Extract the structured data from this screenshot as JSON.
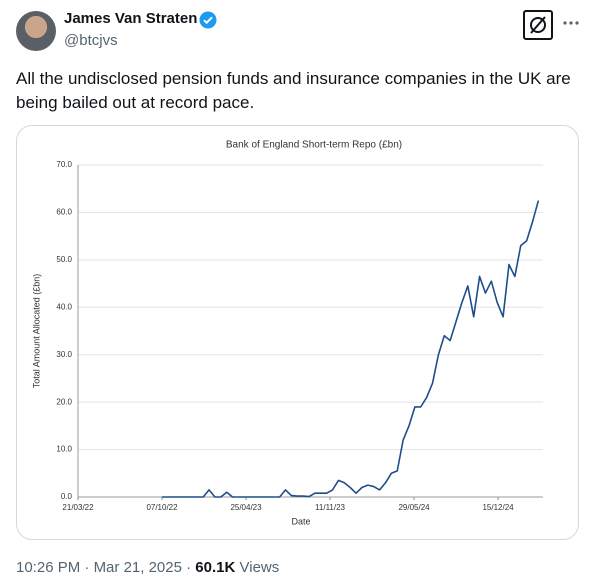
{
  "post": {
    "name": "James Van Straten",
    "handle": "@btcjvs",
    "text": "All the undisclosed pension funds and insurance companies in the UK are being bailed out at record pace.",
    "time": "10:26 PM",
    "date": "Mar 21, 2025",
    "views_count": "60.1K",
    "views_label": "Views"
  },
  "chart_data": {
    "type": "line",
    "title": "Bank of England Short-term Repo (£bn)",
    "xlabel": "Date",
    "ylabel": "Total Amount Allocated (£bn)",
    "x": [
      "07/10/22",
      "21/10/22",
      "04/11/22",
      "18/11/22",
      "02/12/22",
      "16/12/22",
      "30/12/22",
      "13/01/23",
      "27/01/23",
      "10/02/23",
      "24/02/23",
      "10/03/23",
      "24/03/23",
      "07/04/23",
      "21/04/23",
      "05/05/23",
      "19/05/23",
      "02/06/23",
      "16/06/23",
      "30/06/23",
      "14/07/23",
      "28/07/23",
      "11/08/23",
      "25/08/23",
      "08/09/23",
      "22/09/23",
      "06/10/23",
      "20/10/23",
      "03/11/23",
      "17/11/23",
      "01/12/23",
      "15/12/23",
      "29/12/23",
      "12/01/24",
      "26/01/24",
      "09/02/24",
      "23/02/24",
      "08/03/24",
      "22/03/24",
      "05/04/24",
      "19/04/24",
      "03/05/24",
      "17/05/24",
      "31/05/24",
      "14/06/24",
      "28/06/24",
      "12/07/24",
      "26/07/24",
      "09/08/24",
      "23/08/24",
      "06/09/24",
      "20/09/24",
      "04/10/24",
      "18/10/24",
      "01/11/24",
      "15/11/24",
      "29/11/24",
      "13/12/24",
      "27/12/24",
      "10/01/25",
      "24/01/25",
      "07/02/25",
      "21/02/25",
      "07/03/25",
      "21/03/25"
    ],
    "series": [
      {
        "name": "Short-term Repo",
        "color": "#1f4e8c",
        "values": [
          0,
          0,
          0,
          0,
          0,
          0,
          0,
          0,
          1.5,
          0,
          0,
          1,
          0,
          0,
          0,
          0,
          0,
          0,
          0,
          0,
          0,
          1.5,
          0.3,
          0.2,
          0.2,
          0.1,
          0.8,
          0.8,
          0.8,
          1.5,
          3.5,
          3,
          2,
          0.8,
          2,
          2.5,
          2.2,
          1.5,
          3,
          5,
          5.5,
          12,
          15,
          19,
          19,
          21,
          24,
          30,
          34,
          33,
          37,
          41,
          44.5,
          38,
          46.5,
          43,
          45.5,
          41,
          38,
          49,
          46.5,
          53,
          54,
          58,
          62.5
        ]
      }
    ],
    "xlim": [
      "21/03/22",
      "01/04/25"
    ],
    "xticks": [
      "21/03/22",
      "07/10/22",
      "25/04/23",
      "11/11/23",
      "29/05/24",
      "15/12/24"
    ],
    "ylim": [
      0,
      70
    ],
    "yticks": [
      {
        "value": 0,
        "label": "0.0"
      },
      {
        "value": 10,
        "label": "10.0"
      },
      {
        "value": 20,
        "label": "20.0"
      },
      {
        "value": 30,
        "label": "30.0"
      },
      {
        "value": 40,
        "label": "40.0"
      },
      {
        "value": 50,
        "label": "50.0"
      },
      {
        "value": 60,
        "label": "60.0"
      },
      {
        "value": 70,
        "label": "70.0"
      }
    ],
    "grid": true
  }
}
